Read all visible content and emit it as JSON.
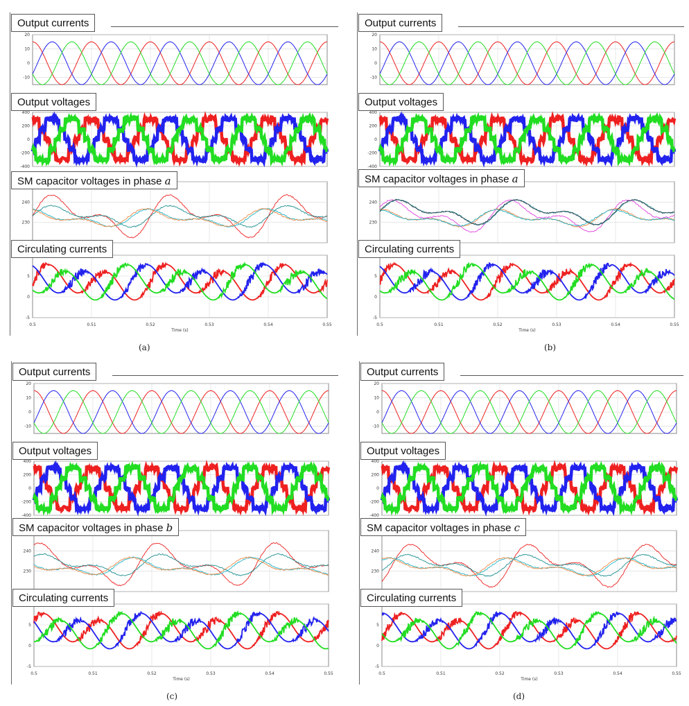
{
  "labels": {
    "output_currents": "Output currents",
    "output_voltages": "Output voltages",
    "sm_prefix": "SM capacitor voltages in phase",
    "circulating_currents": "Circulating currents",
    "time_axis": "Time (s)"
  },
  "figures": [
    {
      "id": "a",
      "caption": "(a)",
      "phase": "a"
    },
    {
      "id": "b",
      "caption": "(b)",
      "phase": "a"
    },
    {
      "id": "c",
      "caption": "(c)",
      "phase": "b"
    },
    {
      "id": "d",
      "caption": "(d)",
      "phase": "c"
    }
  ],
  "colors": {
    "red": "#ee2020",
    "green": "#22dd22",
    "blue": "#2222ee",
    "teal": "#1f8f8f",
    "cyan": "#22b5c8",
    "magenta": "#e040e0",
    "orange": "#ee8844"
  },
  "chart_data": [
    {
      "type": "line",
      "title": "Output currents",
      "x_range": [
        0.5,
        0.55
      ],
      "ylim": [
        -15,
        20
      ],
      "yticks": [
        "20",
        "10",
        "0",
        "-10"
      ],
      "series": [
        {
          "color": "#ee2020",
          "amplitude": 15,
          "frequency_hz": 100,
          "phase_deg": 90
        },
        {
          "color": "#2222ee",
          "amplitude": 15,
          "frequency_hz": 100,
          "phase_deg": -30
        },
        {
          "color": "#22dd22",
          "amplitude": 15,
          "frequency_hz": 100,
          "phase_deg": 210
        }
      ]
    },
    {
      "type": "line",
      "title": "Output voltages",
      "x_range": [
        0.5,
        0.55
      ],
      "ylim": [
        -400,
        400
      ],
      "yticks": [
        "400",
        "200",
        "0",
        "-200",
        "-400"
      ],
      "series": [
        {
          "color": "#ee2020",
          "peak": 300,
          "levels": 5,
          "frequency_hz": 100,
          "phase_deg": 90
        },
        {
          "color": "#2222ee",
          "peak": 300,
          "levels": 5,
          "frequency_hz": 100,
          "phase_deg": -30
        },
        {
          "color": "#22dd22",
          "peak": 300,
          "levels": 5,
          "frequency_hz": 100,
          "phase_deg": 210
        }
      ]
    },
    {
      "type": "line",
      "title": "SM capacitor voltages in phase",
      "x_range": [
        0.5,
        0.55
      ],
      "ylim": [
        220,
        250
      ],
      "yticks": [
        "250",
        "240",
        "230",
        "220"
      ],
      "series": [
        {
          "color": "#ee2020",
          "mean": 233,
          "amplitude": 12
        },
        {
          "color": "#1f8f8f",
          "mean": 233,
          "amplitude": 6
        },
        {
          "color": "#22b5c8",
          "mean": 232,
          "amplitude": 5
        },
        {
          "color": "#ee8844",
          "mean": 232,
          "amplitude": 5
        }
      ]
    },
    {
      "type": "line",
      "title": "Circulating currents",
      "x_range": [
        0.5,
        0.55
      ],
      "ylim": [
        -5,
        10
      ],
      "yticks": [
        "10",
        "5",
        "0",
        "-5"
      ],
      "xticks": [
        "0.5",
        "0.51",
        "0.52",
        "0.53",
        "0.54",
        "0.55"
      ],
      "xlabel": "Time (s)",
      "series": [
        {
          "color": "#ee2020",
          "mean": 3.5,
          "amplitude": 4.5
        },
        {
          "color": "#2222ee",
          "mean": 3.5,
          "amplitude": 4.5
        },
        {
          "color": "#22dd22",
          "mean": 3.5,
          "amplitude": 4.5
        }
      ]
    }
  ]
}
